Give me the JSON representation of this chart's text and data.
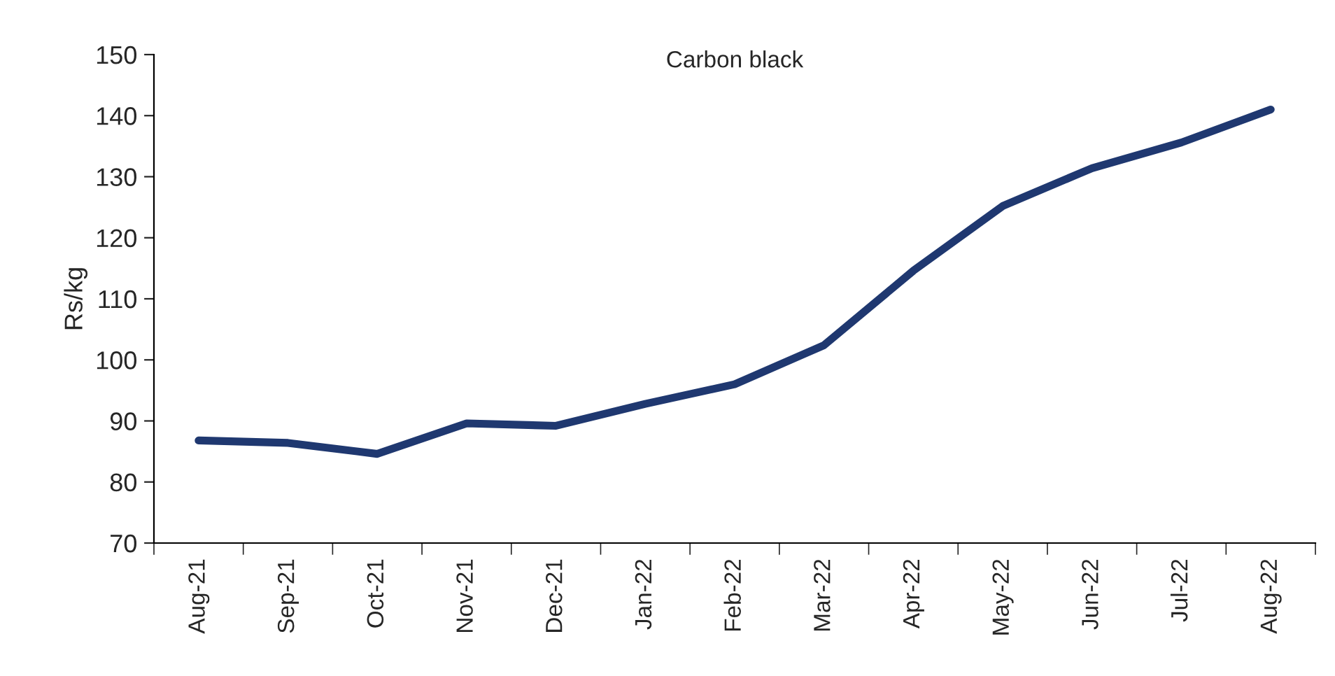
{
  "chart_data": {
    "type": "line",
    "title": "Carbon black",
    "ylabel": "Rs/kg",
    "categories": [
      "Aug-21",
      "Sep-21",
      "Oct-21",
      "Nov-21",
      "Dec-21",
      "Jan-22",
      "Feb-22",
      "Mar-22",
      "Apr-22",
      "May-22",
      "Jun-22",
      "Jul-22",
      "Aug-22"
    ],
    "series": [
      {
        "color": "#1f3870",
        "values": [
          86.8,
          86.4,
          84.6,
          89.6,
          89.2,
          92.8,
          96.0,
          102.4,
          114.6,
          125.2,
          131.4,
          135.6,
          141.0
        ]
      }
    ],
    "ylim": [
      70,
      150
    ],
    "yticks": [
      70,
      80,
      90,
      100,
      110,
      120,
      130,
      140,
      150
    ],
    "grid": false,
    "marker": "none",
    "line_style": "solid"
  }
}
